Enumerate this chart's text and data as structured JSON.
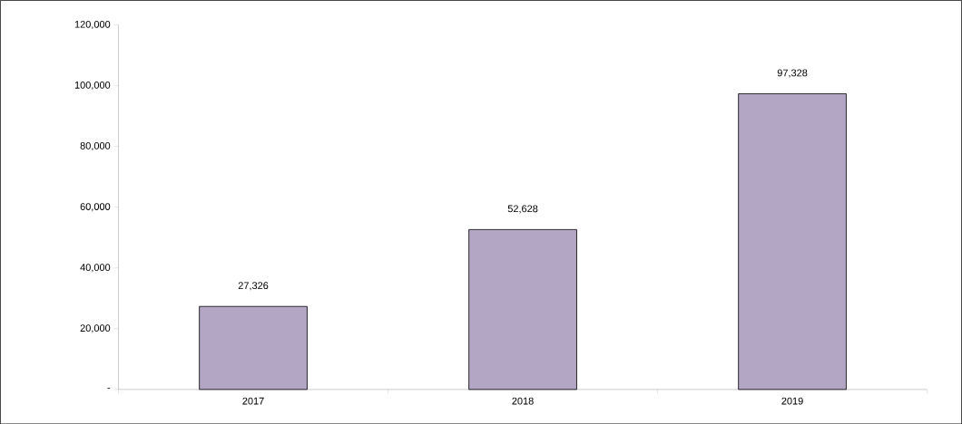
{
  "chart_data": {
    "type": "bar",
    "categories": [
      "2017",
      "2018",
      "2019"
    ],
    "values": [
      27326,
      52628,
      97328
    ],
    "value_labels": [
      "27,326",
      "52,628",
      "97,328"
    ],
    "color": "#b3a6c4",
    "ylim": [
      0,
      120000
    ],
    "yticks": [
      {
        "value": 0,
        "label": "-"
      },
      {
        "value": 20000,
        "label": "20,000"
      },
      {
        "value": 40000,
        "label": "40,000"
      },
      {
        "value": 60000,
        "label": "60,000"
      },
      {
        "value": 80000,
        "label": "80,000"
      },
      {
        "value": 100000,
        "label": "100,000"
      },
      {
        "value": 120000,
        "label": "120,000"
      }
    ],
    "grid": false
  }
}
